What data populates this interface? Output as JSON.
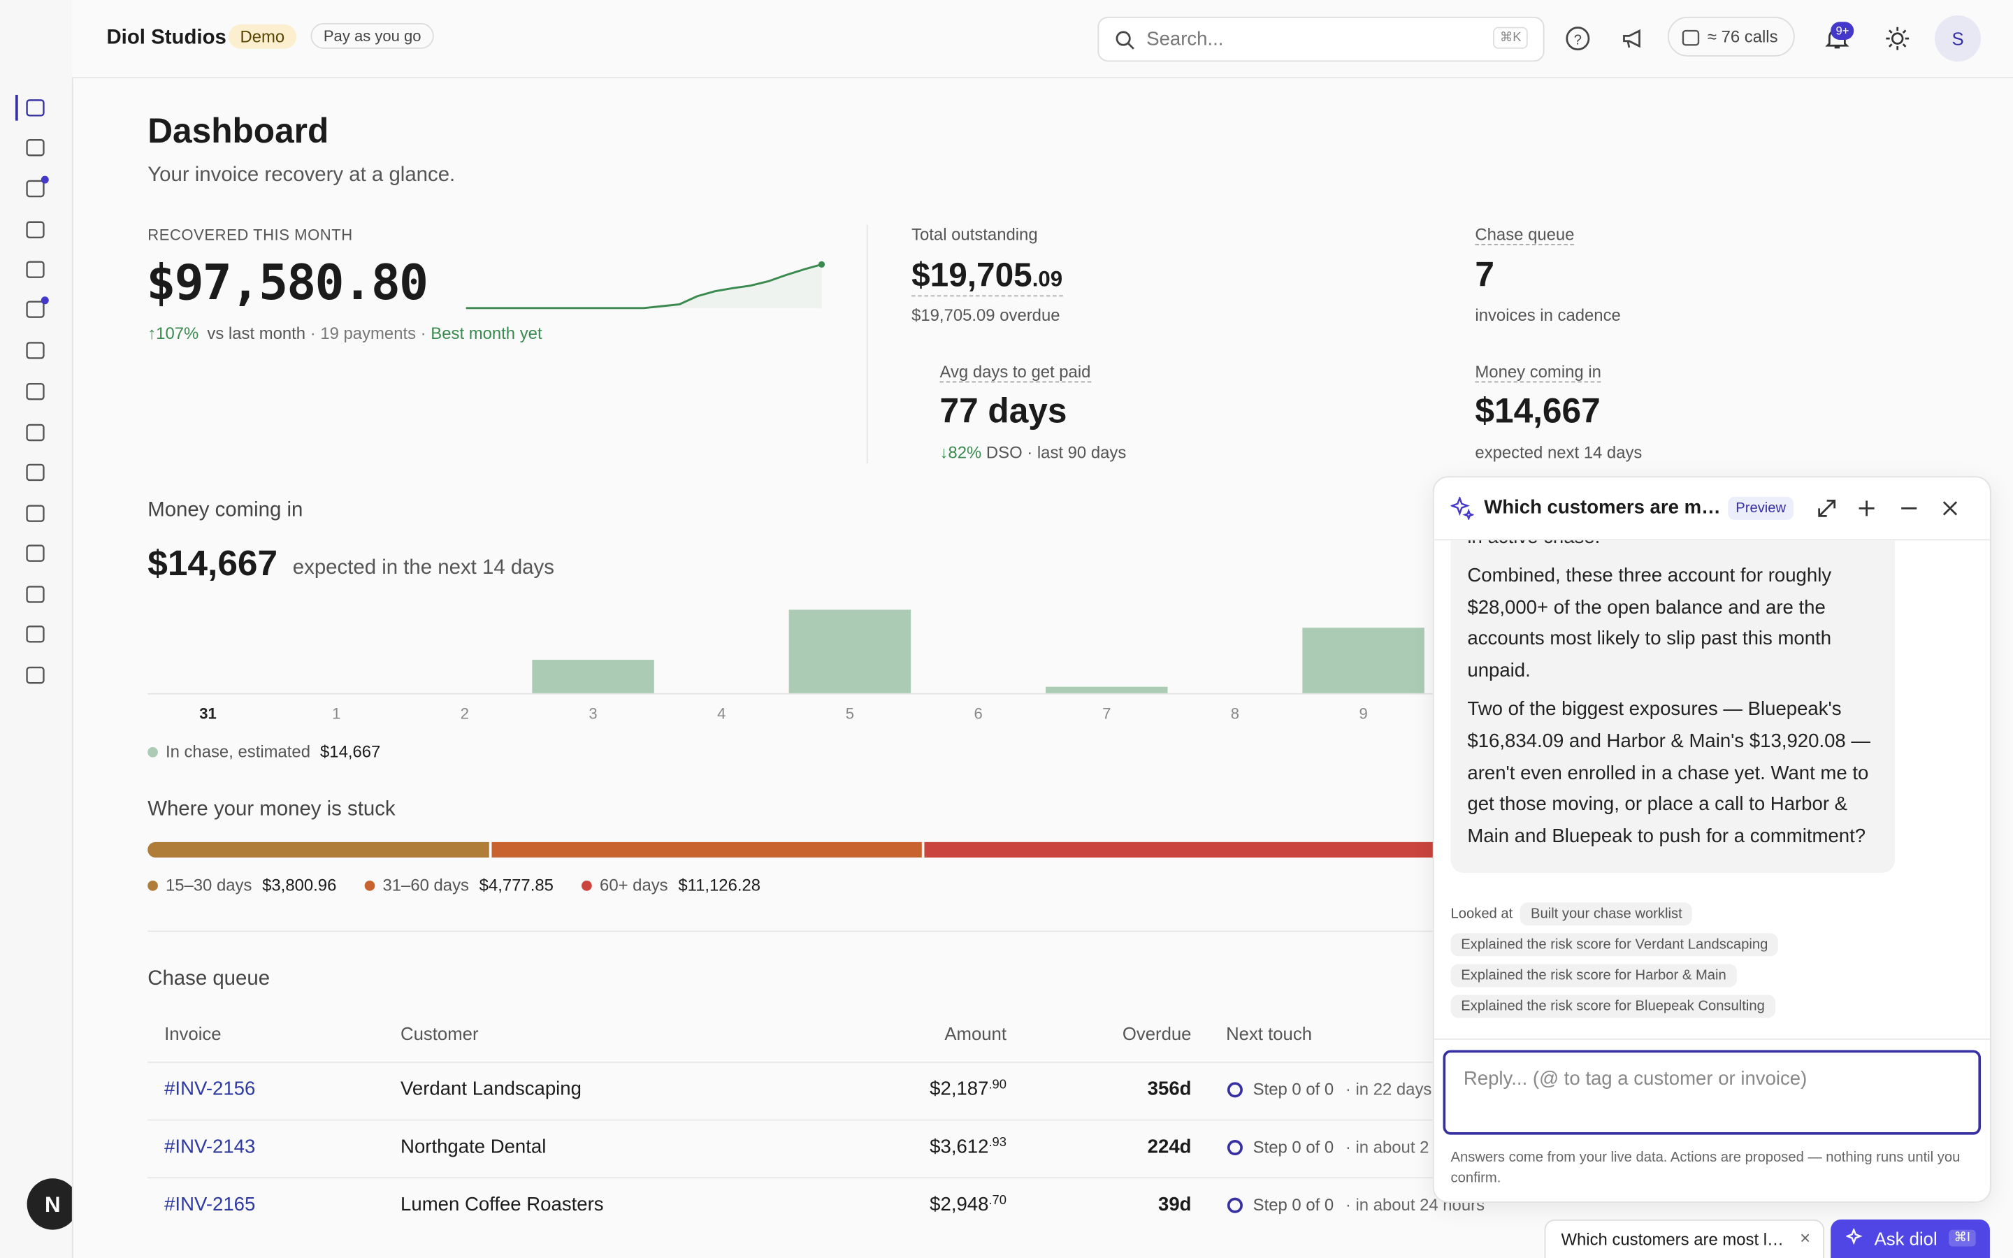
{
  "header": {
    "org": "Diol Studios",
    "badge": "Demo",
    "plan": "Pay as you go",
    "search": "Search...",
    "shortcut": "⌘K",
    "calls": "≈ 76 calls",
    "notifications": "9+",
    "avatar": "S",
    "launcher": "N"
  },
  "page": {
    "title": "Dashboard",
    "subtitle": "Your invoice recovery at a glance."
  },
  "kpis": {
    "recovered": {
      "label": "RECOVERED THIS MONTH",
      "value": "$97,580.80",
      "change": "↑107%",
      "change_note": "vs last month",
      "payments": "· 19 payments ·",
      "highlight": "Best month yet",
      "sparkline": [
        0,
        0,
        0,
        0,
        0,
        0,
        0,
        0,
        0,
        0,
        0,
        0.3,
        0.6,
        1.9,
        2.7,
        3.2,
        3.6,
        4.3,
        5.3,
        6.2,
        7
      ]
    },
    "outstanding": {
      "label": "Total outstanding",
      "value": "$19,705",
      "cents": ".09",
      "note": "$19,705.09 overdue"
    },
    "chase_queue": {
      "label": "Chase queue",
      "value": "7",
      "note": "invoices in cadence"
    },
    "avg_days": {
      "label": "Avg days to get paid",
      "value": "77 days",
      "change": "↓82%",
      "note": "DSO · last 90 days"
    },
    "money_in": {
      "label": "Money coming in",
      "value": "$14,667",
      "note": "expected next 14 days"
    }
  },
  "forecast": {
    "title": "Money coming in",
    "value": "$14,667",
    "note": "expected in the next 14 days",
    "categories": [
      "31",
      "1",
      "2",
      "3",
      "4",
      "5",
      "6",
      "7",
      "8",
      "9"
    ],
    "values": [
      0,
      0,
      0,
      1300,
      0,
      3250,
      0,
      250,
      0,
      2550
    ],
    "color": "#abcbb5",
    "legend": "In chase, estimated",
    "legend_value": "$14,667"
  },
  "stuck": {
    "title": "Where your money is stuck",
    "segments": [
      {
        "label": "15–30 days",
        "value": 3800.96,
        "value_label": "$3,800.96",
        "color": "#b07d38"
      },
      {
        "label": "31–60 days",
        "value": 4777.85,
        "value_label": "$4,777.85",
        "color": "#c8632f"
      },
      {
        "label": "60+ days",
        "value": 11126.28,
        "value_label": "$11,126.28",
        "color": "#c9453e"
      }
    ]
  },
  "queue": {
    "title": "Chase queue",
    "columns": [
      "Invoice",
      "Customer",
      "Amount",
      "Overdue",
      "Next touch"
    ],
    "rows": [
      {
        "invoice": "#INV-2156",
        "customer": "Verdant Landscaping",
        "amount": "$2,187",
        "cents": ".90",
        "overdue": "356d",
        "step": "Step 0 of 0",
        "when": "· in 22 days"
      },
      {
        "invoice": "#INV-2143",
        "customer": "Northgate Dental",
        "amount": "$3,612",
        "cents": ".93",
        "overdue": "224d",
        "step": "Step 0 of 0",
        "when": "· in about 2"
      },
      {
        "invoice": "#INV-2165",
        "customer": "Lumen Coffee Roasters",
        "amount": "$2,948",
        "cents": ".70",
        "overdue": "39d",
        "step": "Step 0 of 0",
        "when": "· in about 24 hours"
      }
    ]
  },
  "chat": {
    "title": "Which customers are m…",
    "tag": "Preview",
    "messages": [
      "in active chase.",
      "Combined, these three account for roughly $28,000+ of the open balance and are the accounts most likely to slip past this month unpaid.",
      "Two of the biggest exposures — Bluepeak's $16,834.09 and Harbor & Main's $13,920.08 — aren't even enrolled in a chase yet. Want me to get those moving, or place a call to Harbor & Main and Bluepeak to push for a commitment?"
    ],
    "looked_at": "Looked at",
    "tools": [
      "Built your chase worklist",
      "Explained the risk score for Verdant Landscaping",
      "Explained the risk score for Harbor & Main",
      "Explained the risk score for Bluepeak Consulting"
    ],
    "placeholder": "Reply...  (@ to tag a customer or invoice)",
    "footer": "Answers come from your live data. Actions are proposed — nothing runs until you confirm."
  },
  "dock": {
    "tab": "Which customers are most l…",
    "ask": "Ask diol",
    "shortcut": "⌘I"
  }
}
